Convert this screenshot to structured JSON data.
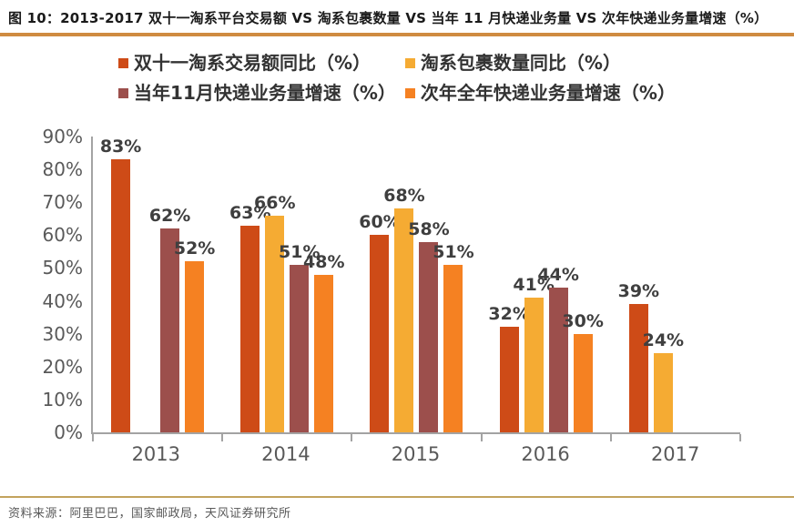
{
  "figure": {
    "label": "图 10",
    "title": "图 10：2013-2017 双十一淘系平台交易额 VS 淘系包裹数量 VS 当年 11 月快递业务量 VS 次年快递业务量增速（%）",
    "source": "资料来源：阿里巴巴，国家邮政局，天风证券研究所"
  },
  "colors": {
    "series_red": "#ce4b17",
    "series_amber": "#f5ab33",
    "series_maroon": "#9c4f4c",
    "series_orange": "#f58122",
    "top_divider": "#cf8b41",
    "bottom_divider": "#c3a35d",
    "axis": "#a3a3a3",
    "label_text": "#3f3f3f",
    "tick_text": "#595959"
  },
  "chart_data": {
    "type": "bar",
    "title": "2013-2017 双十一淘系平台交易额 VS 淘系包裹数量 VS 当年11月快递业务量 VS 次年快递业务量增速（%）",
    "categories": [
      "2013",
      "2014",
      "2015",
      "2016",
      "2017"
    ],
    "series": [
      {
        "name": "双十一淘系交易额同比（%）",
        "color": "#ce4b17",
        "values": [
          83,
          63,
          60,
          32,
          39
        ]
      },
      {
        "name": "淘系包裹数量同比（%）",
        "color": "#f5ab33",
        "values": [
          null,
          66,
          68,
          41,
          24
        ]
      },
      {
        "name": "当年11月快递业务量增速（%）",
        "color": "#9c4f4c",
        "values": [
          62,
          51,
          58,
          44,
          null
        ]
      },
      {
        "name": "次年全年快递业务量增速（%）",
        "color": "#f58122",
        "values": [
          52,
          48,
          51,
          30,
          null
        ]
      }
    ],
    "value_suffix": "%",
    "xlabel": "",
    "ylabel": "",
    "ylim": [
      0,
      90
    ],
    "yticks": [
      "90%",
      "80%",
      "70%",
      "60%",
      "50%",
      "40%",
      "30%",
      "20%",
      "10%",
      "0%"
    ],
    "grid": false,
    "legend_position": "top",
    "data_labels": true
  }
}
